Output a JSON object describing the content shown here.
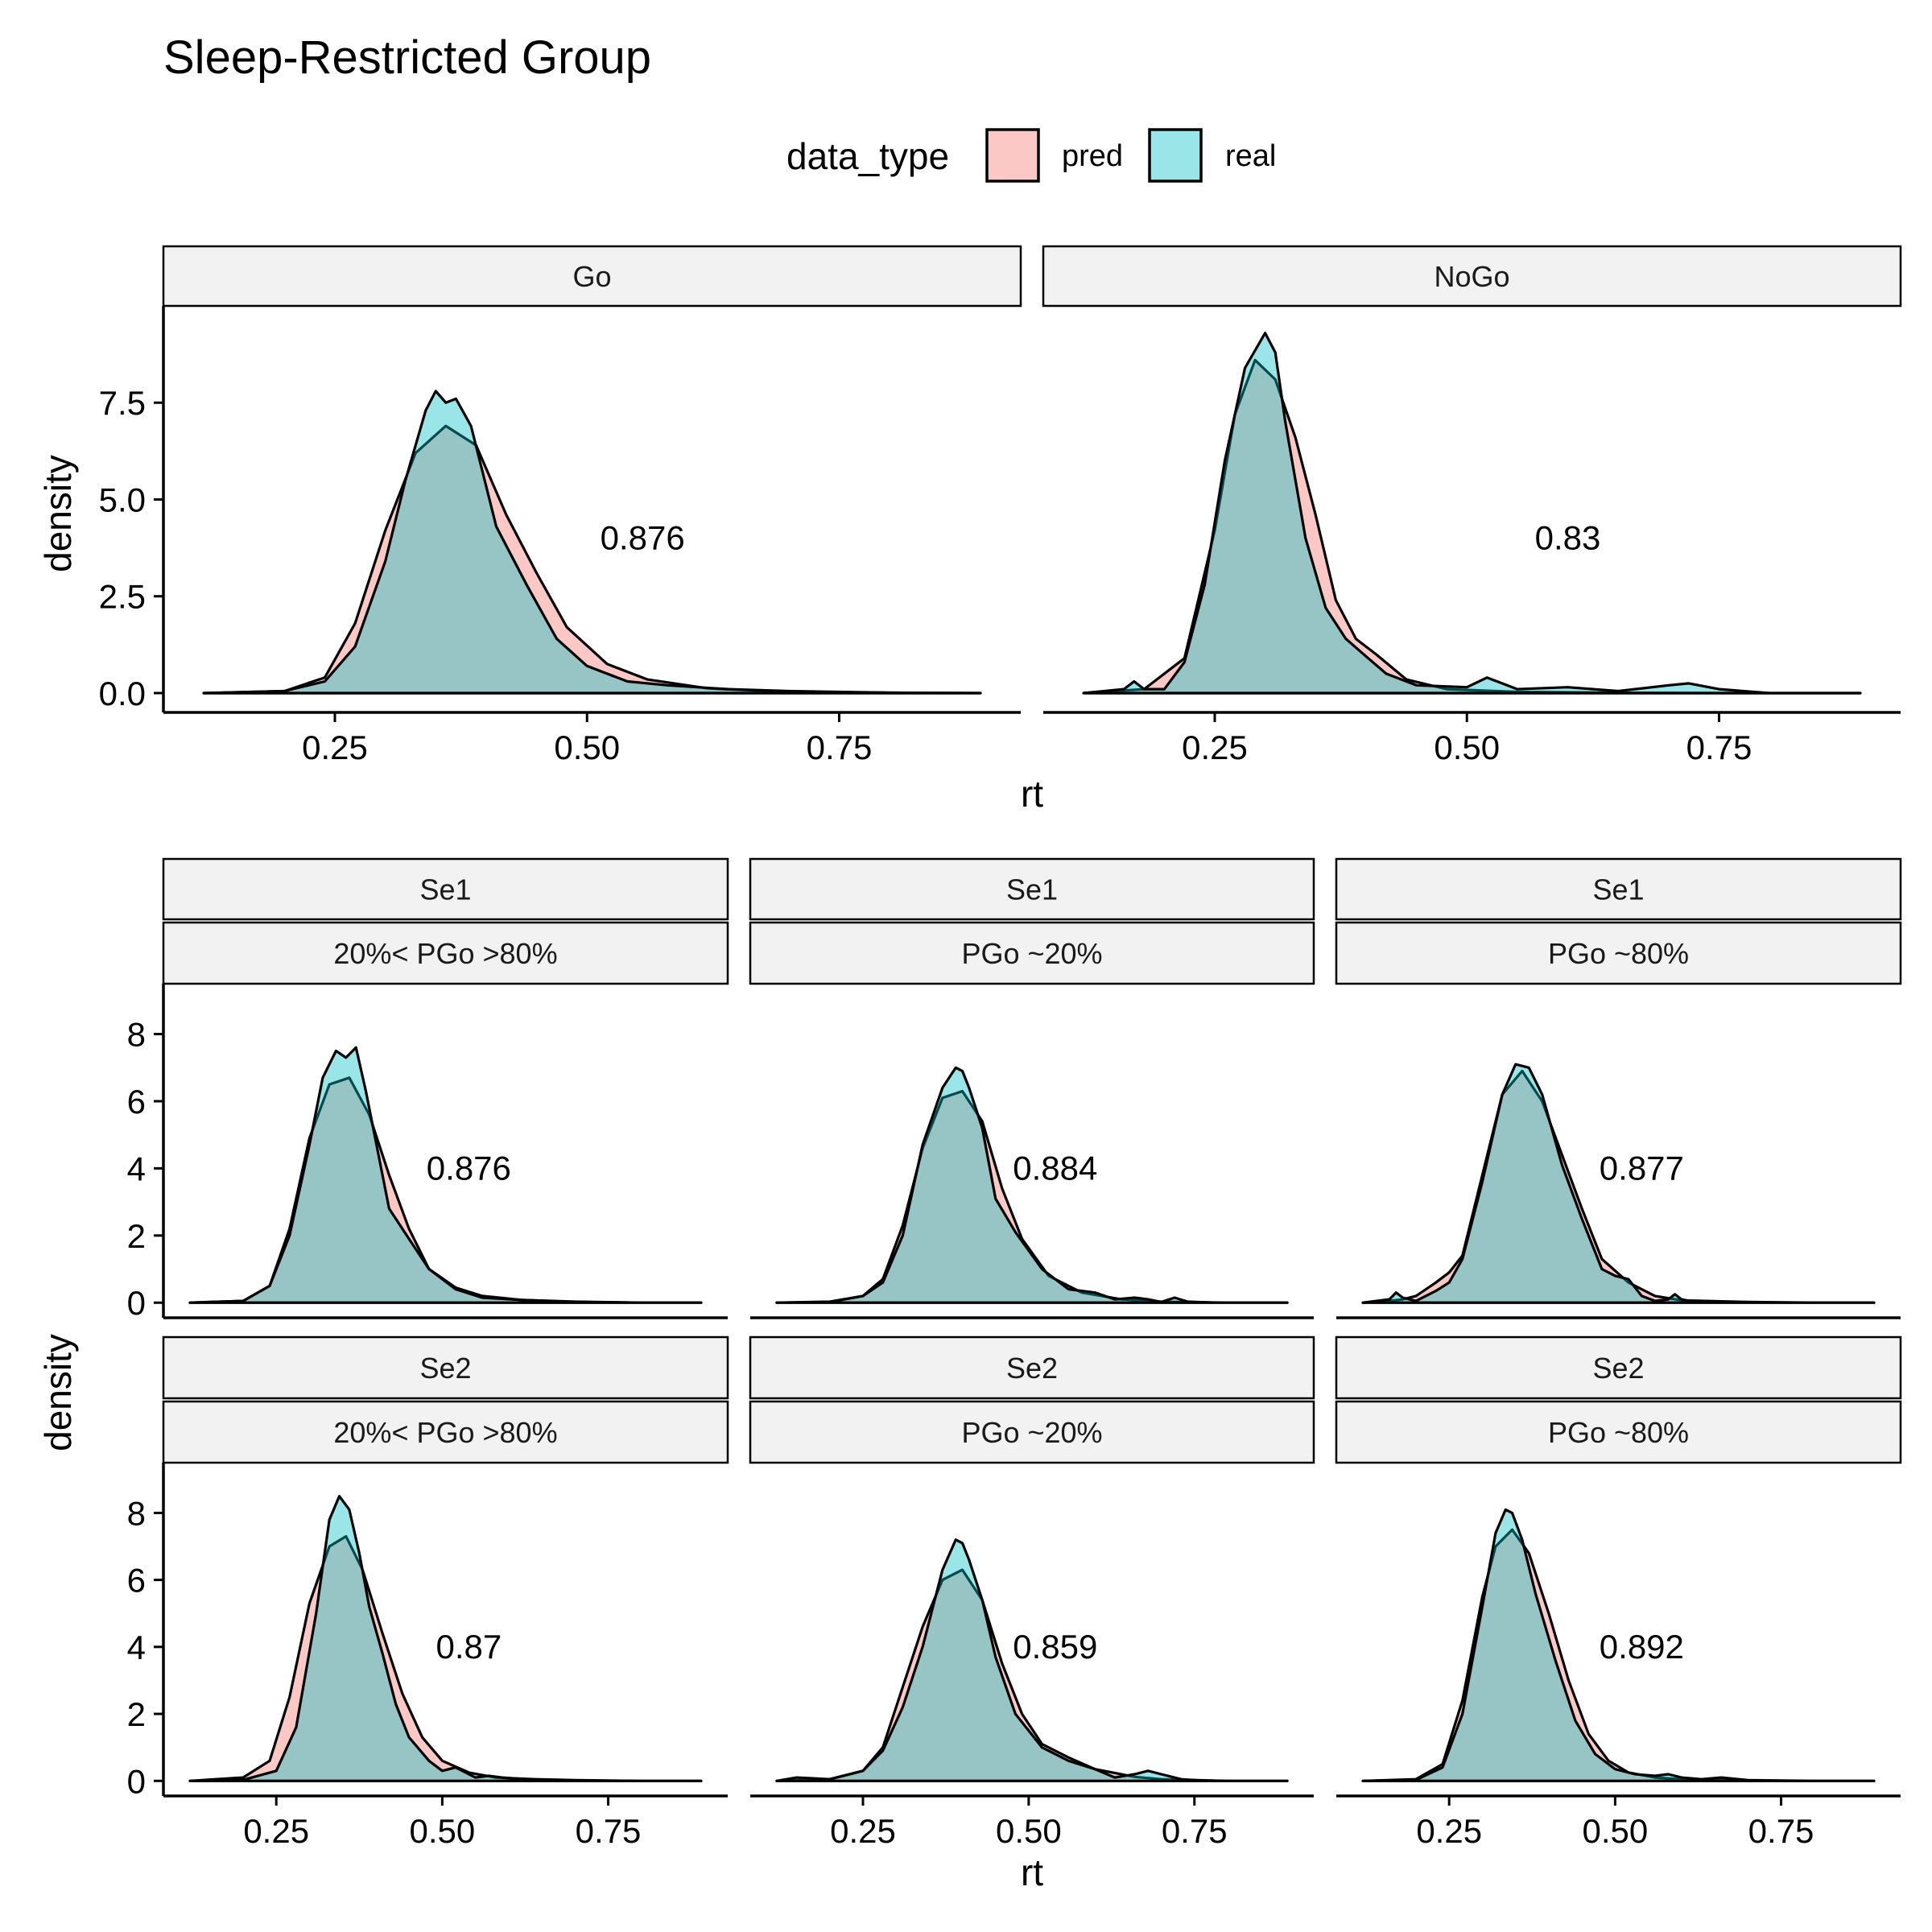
{
  "title": "Sleep-Restricted Group",
  "legend": {
    "title": "data_type",
    "entries": [
      {
        "name": "pred",
        "color": "#F8766D"
      },
      {
        "name": "real",
        "color": "#00BFC4"
      }
    ]
  },
  "colors": {
    "pred_fill": "#F8766D",
    "real_fill": "#00BFC4",
    "fill_opacity": 0.4,
    "strip_bg": "#F2F2F2"
  },
  "chart_data": [
    {
      "type": "area",
      "figure_row": 1,
      "xlabel": "rt",
      "ylabel": "density",
      "xlim": [
        0.08,
        0.93
      ],
      "ylim": [
        -0.5,
        10.0
      ],
      "x_ticks": [
        "0.25",
        "0.50",
        "0.75"
      ],
      "x_tick_values": [
        0.25,
        0.5,
        0.75
      ],
      "y_ticks": [
        "0.0",
        "2.5",
        "5.0",
        "7.5"
      ],
      "y_tick_values": [
        0,
        2.5,
        5.0,
        7.5
      ],
      "x_range": [
        0.12,
        0.89
      ],
      "panels": [
        {
          "strip": [
            "Go"
          ],
          "annotation": "0.876",
          "annotation_pos": [
            0.555,
            4.0
          ],
          "series": [
            {
              "name": "pred",
              "x": [
                0.12,
                0.2,
                0.24,
                0.27,
                0.3,
                0.33,
                0.36,
                0.39,
                0.42,
                0.45,
                0.48,
                0.52,
                0.56,
                0.62,
                0.7,
                0.8,
                0.89
              ],
              "y": [
                0,
                0.05,
                0.4,
                1.8,
                4.2,
                6.2,
                6.9,
                6.4,
                4.6,
                3.1,
                1.7,
                0.75,
                0.35,
                0.12,
                0.03,
                0.01,
                0
              ]
            },
            {
              "name": "real",
              "x": [
                0.12,
                0.2,
                0.24,
                0.27,
                0.3,
                0.32,
                0.34,
                0.35,
                0.36,
                0.37,
                0.385,
                0.41,
                0.44,
                0.47,
                0.5,
                0.54,
                0.58,
                0.64,
                0.7,
                0.8,
                0.89
              ],
              "y": [
                0,
                0.05,
                0.3,
                1.2,
                3.4,
                5.5,
                7.3,
                7.8,
                7.5,
                7.6,
                6.9,
                4.3,
                2.8,
                1.4,
                0.7,
                0.3,
                0.2,
                0.1,
                0.05,
                0.01,
                0
              ]
            }
          ]
        },
        {
          "strip": [
            "NoGo"
          ],
          "annotation": "0.83",
          "annotation_pos": [
            0.6,
            4.0
          ],
          "series": [
            {
              "name": "pred",
              "x": [
                0.12,
                0.18,
                0.22,
                0.25,
                0.27,
                0.29,
                0.31,
                0.33,
                0.35,
                0.37,
                0.39,
                0.41,
                0.44,
                0.48,
                0.55,
                0.65,
                0.75,
                0.89
              ],
              "y": [
                0,
                0.1,
                0.9,
                4.2,
                7.2,
                8.6,
                8.1,
                6.6,
                4.6,
                2.4,
                1.4,
                1.0,
                0.35,
                0.1,
                0.03,
                0.01,
                0,
                0
              ]
            },
            {
              "name": "real",
              "x": [
                0.12,
                0.16,
                0.17,
                0.18,
                0.2,
                0.22,
                0.24,
                0.26,
                0.28,
                0.3,
                0.31,
                0.32,
                0.34,
                0.36,
                0.38,
                0.4,
                0.42,
                0.45,
                0.5,
                0.52,
                0.55,
                0.6,
                0.65,
                0.7,
                0.72,
                0.75,
                0.8,
                0.89
              ],
              "y": [
                0,
                0.1,
                0.3,
                0.1,
                0.1,
                0.8,
                2.8,
                6.0,
                8.4,
                9.3,
                8.8,
                7.0,
                4.0,
                2.2,
                1.4,
                0.95,
                0.5,
                0.2,
                0.15,
                0.4,
                0.1,
                0.15,
                0.05,
                0.2,
                0.25,
                0.1,
                0,
                0
              ]
            }
          ]
        }
      ]
    },
    {
      "type": "area",
      "figure_row": 2,
      "xlabel": "rt",
      "ylabel": "density",
      "xlim": [
        0.08,
        0.93
      ],
      "ylim": [
        -0.45,
        9.5
      ],
      "x_ticks": [
        "0.25",
        "0.50",
        "0.75"
      ],
      "x_tick_values": [
        0.25,
        0.5,
        0.75
      ],
      "y_ticks": [
        "0",
        "2",
        "4",
        "6",
        "8"
      ],
      "y_tick_values": [
        0,
        2,
        4,
        6,
        8
      ],
      "x_range": [
        0.12,
        0.89
      ],
      "panels": [
        {
          "strip": [
            "Se1",
            "20%< PGo >80%"
          ],
          "annotation": "0.876",
          "annotation_pos": [
            0.54,
            4.0
          ],
          "series": [
            {
              "name": "pred",
              "x": [
                0.12,
                0.2,
                0.24,
                0.27,
                0.3,
                0.33,
                0.36,
                0.39,
                0.42,
                0.45,
                0.48,
                0.52,
                0.56,
                0.62,
                0.7,
                0.8,
                0.89
              ],
              "y": [
                0,
                0.05,
                0.5,
                2.2,
                4.9,
                6.5,
                6.7,
                5.6,
                3.8,
                2.2,
                1.0,
                0.45,
                0.2,
                0.08,
                0.02,
                0,
                0
              ]
            },
            {
              "name": "real",
              "x": [
                0.12,
                0.2,
                0.24,
                0.27,
                0.3,
                0.32,
                0.34,
                0.355,
                0.37,
                0.385,
                0.4,
                0.42,
                0.45,
                0.48,
                0.52,
                0.56,
                0.62,
                0.7,
                0.8,
                0.89
              ],
              "y": [
                0,
                0.05,
                0.5,
                2.0,
                4.7,
                6.7,
                7.5,
                7.3,
                7.6,
                6.3,
                4.8,
                2.8,
                1.9,
                1.0,
                0.4,
                0.15,
                0.08,
                0.03,
                0,
                0
              ]
            }
          ]
        },
        {
          "strip": [
            "Se1",
            "PGo ~20%"
          ],
          "annotation": "0.884",
          "annotation_pos": [
            0.54,
            4.0
          ],
          "series": [
            {
              "name": "pred",
              "x": [
                0.12,
                0.2,
                0.25,
                0.28,
                0.31,
                0.34,
                0.37,
                0.4,
                0.43,
                0.46,
                0.49,
                0.53,
                0.58,
                0.64,
                0.7,
                0.8,
                0.89
              ],
              "y": [
                0,
                0.03,
                0.2,
                0.7,
                2.3,
                4.6,
                6.1,
                6.3,
                5.4,
                3.4,
                1.9,
                0.8,
                0.3,
                0.1,
                0.03,
                0,
                0
              ]
            },
            {
              "name": "real",
              "x": [
                0.12,
                0.2,
                0.25,
                0.28,
                0.31,
                0.34,
                0.37,
                0.39,
                0.4,
                0.41,
                0.43,
                0.45,
                0.48,
                0.52,
                0.56,
                0.6,
                0.63,
                0.66,
                0.68,
                0.7,
                0.72,
                0.74,
                0.78,
                0.89
              ],
              "y": [
                0,
                0.02,
                0.2,
                0.6,
                2.0,
                4.7,
                6.4,
                7.0,
                6.9,
                6.4,
                5.2,
                3.1,
                2.1,
                1.0,
                0.4,
                0.3,
                0.1,
                0.15,
                0.1,
                0.02,
                0.15,
                0.03,
                0,
                0
              ]
            }
          ]
        },
        {
          "strip": [
            "Se1",
            "PGo ~80%"
          ],
          "annotation": "0.877",
          "annotation_pos": [
            0.54,
            4.0
          ],
          "series": [
            {
              "name": "pred",
              "x": [
                0.12,
                0.16,
                0.18,
                0.2,
                0.23,
                0.25,
                0.27,
                0.3,
                0.33,
                0.36,
                0.39,
                0.42,
                0.45,
                0.48,
                0.52,
                0.56,
                0.6,
                0.7,
                0.8,
                0.89
              ],
              "y": [
                0,
                0.05,
                0.1,
                0.2,
                0.6,
                0.9,
                1.4,
                3.8,
                6.2,
                6.9,
                6.0,
                4.4,
                2.8,
                1.3,
                0.6,
                0.2,
                0.07,
                0.02,
                0,
                0
              ]
            },
            {
              "name": "real",
              "x": [
                0.12,
                0.16,
                0.17,
                0.18,
                0.2,
                0.23,
                0.25,
                0.27,
                0.3,
                0.33,
                0.35,
                0.37,
                0.39,
                0.42,
                0.45,
                0.48,
                0.5,
                0.52,
                0.54,
                0.56,
                0.58,
                0.59,
                0.6,
                0.62,
                0.7,
                0.89
              ],
              "y": [
                0,
                0.1,
                0.3,
                0.15,
                0.05,
                0.35,
                0.6,
                1.3,
                3.6,
                6.2,
                7.1,
                7.0,
                6.2,
                4.1,
                2.5,
                1.0,
                0.8,
                0.7,
                0.2,
                0.05,
                0.1,
                0.25,
                0.1,
                0.02,
                0,
                0
              ]
            }
          ]
        },
        {
          "strip": [
            "Se2",
            "20%< PGo >80%"
          ],
          "annotation": "0.87",
          "annotation_pos": [
            0.54,
            4.0
          ],
          "series": [
            {
              "name": "pred",
              "x": [
                0.12,
                0.2,
                0.24,
                0.27,
                0.3,
                0.33,
                0.355,
                0.38,
                0.41,
                0.44,
                0.47,
                0.5,
                0.54,
                0.58,
                0.64,
                0.7,
                0.8,
                0.89
              ],
              "y": [
                0,
                0.1,
                0.6,
                2.5,
                5.3,
                7.0,
                7.3,
                6.3,
                4.4,
                2.6,
                1.3,
                0.6,
                0.25,
                0.1,
                0.05,
                0.02,
                0,
                0
              ]
            },
            {
              "name": "real",
              "x": [
                0.12,
                0.2,
                0.25,
                0.28,
                0.31,
                0.33,
                0.345,
                0.36,
                0.375,
                0.39,
                0.41,
                0.43,
                0.45,
                0.48,
                0.5,
                0.52,
                0.55,
                0.57,
                0.59,
                0.62,
                0.7,
                0.8,
                0.89
              ],
              "y": [
                0,
                0.03,
                0.3,
                1.6,
                5.0,
                7.8,
                8.5,
                8.1,
                6.8,
                5.2,
                3.8,
                2.3,
                1.3,
                0.6,
                0.3,
                0.4,
                0.1,
                0.15,
                0.1,
                0.05,
                0.01,
                0,
                0
              ]
            }
          ]
        },
        {
          "strip": [
            "Se2",
            "PGo ~20%"
          ],
          "annotation": "0.859",
          "annotation_pos": [
            0.54,
            4.0
          ],
          "series": [
            {
              "name": "pred",
              "x": [
                0.12,
                0.2,
                0.25,
                0.28,
                0.31,
                0.34,
                0.37,
                0.4,
                0.43,
                0.46,
                0.49,
                0.52,
                0.56,
                0.6,
                0.66,
                0.7,
                0.8,
                0.89
              ],
              "y": [
                0,
                0.05,
                0.3,
                1.0,
                2.8,
                4.6,
                6.0,
                6.3,
                5.4,
                3.5,
                2.0,
                1.1,
                0.7,
                0.35,
                0.12,
                0.05,
                0,
                0
              ]
            },
            {
              "name": "real",
              "x": [
                0.12,
                0.15,
                0.2,
                0.25,
                0.28,
                0.31,
                0.34,
                0.37,
                0.39,
                0.4,
                0.41,
                0.43,
                0.45,
                0.48,
                0.52,
                0.56,
                0.6,
                0.63,
                0.66,
                0.68,
                0.7,
                0.73,
                0.76,
                0.8,
                0.89
              ],
              "y": [
                0,
                0.1,
                0.05,
                0.3,
                0.9,
                2.2,
                4.0,
                6.3,
                7.2,
                7.1,
                6.6,
                5.4,
                3.7,
                2.0,
                1.0,
                0.6,
                0.35,
                0.1,
                0.2,
                0.3,
                0.2,
                0.05,
                0.01,
                0,
                0
              ]
            }
          ]
        },
        {
          "strip": [
            "Se2",
            "PGo ~80%"
          ],
          "annotation": "0.892",
          "annotation_pos": [
            0.54,
            4.0
          ],
          "series": [
            {
              "name": "pred",
              "x": [
                0.12,
                0.2,
                0.24,
                0.27,
                0.3,
                0.32,
                0.345,
                0.37,
                0.4,
                0.43,
                0.46,
                0.49,
                0.52,
                0.56,
                0.6,
                0.66,
                0.7,
                0.8,
                0.89
              ],
              "y": [
                0,
                0.05,
                0.5,
                2.4,
                5.5,
                7.0,
                7.5,
                6.8,
                5.0,
                3.0,
                1.4,
                0.6,
                0.25,
                0.1,
                0.05,
                0.02,
                0,
                0,
                0
              ]
            },
            {
              "name": "real",
              "x": [
                0.12,
                0.2,
                0.24,
                0.27,
                0.3,
                0.32,
                0.335,
                0.345,
                0.36,
                0.38,
                0.41,
                0.44,
                0.47,
                0.5,
                0.53,
                0.56,
                0.58,
                0.6,
                0.63,
                0.66,
                0.7,
                0.8,
                0.89
              ],
              "y": [
                0,
                0.03,
                0.4,
                2.0,
                5.2,
                7.4,
                8.1,
                8.0,
                7.2,
                5.6,
                3.6,
                1.8,
                0.8,
                0.35,
                0.2,
                0.15,
                0.2,
                0.1,
                0.05,
                0.1,
                0.02,
                0,
                0
              ]
            }
          ]
        }
      ]
    }
  ]
}
